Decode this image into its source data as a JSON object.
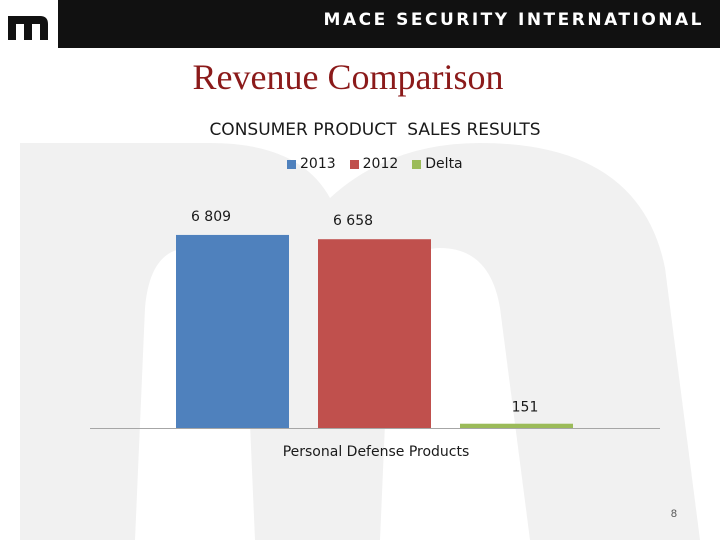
{
  "header": {
    "company": "MACE SECURITY INTERNATIONAL",
    "logo_letter": "m",
    "background_color": "#111111"
  },
  "slide": {
    "title": "Revenue Comparison",
    "page_number": "8"
  },
  "chart_data": {
    "type": "bar",
    "title": "CONSUMER PRODUCT  SALES RESULTS",
    "categories": [
      "Personal Defense Products"
    ],
    "series": [
      {
        "name": "2013",
        "values": [
          6809
        ],
        "label": "6 809",
        "color": "#4f81bd"
      },
      {
        "name": "2012",
        "values": [
          6658
        ],
        "label": "6 658",
        "color": "#c0504d"
      },
      {
        "name": "Delta",
        "values": [
          151
        ],
        "label": "151",
        "color": "#9bbb59"
      }
    ],
    "xlabel": "",
    "ylabel": "",
    "ylim": [
      0,
      7900
    ],
    "grid": false,
    "legend_position": "top"
  }
}
